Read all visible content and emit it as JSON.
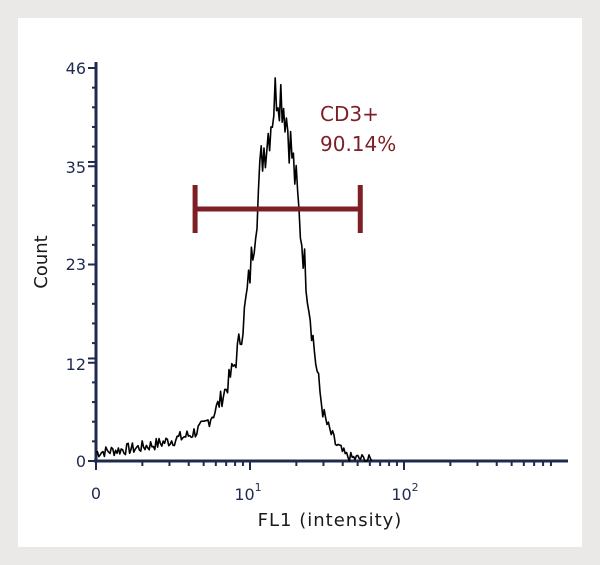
{
  "chart_data": {
    "type": "line",
    "xlabel": "FL1 (intensity)",
    "ylabel": "Count",
    "x_scale": "log",
    "y_ticks": [
      0,
      12,
      23,
      35,
      46
    ],
    "x_ticks": [
      {
        "base": "0",
        "exp": ""
      },
      {
        "base": "10",
        "exp": "1"
      },
      {
        "base": "10",
        "exp": "2"
      }
    ],
    "ylim": [
      0,
      46
    ],
    "series": [
      {
        "x": [
          1.0,
          1.8,
          2.5,
          3.2,
          4.0,
          5.0,
          6.0,
          7.0,
          8.0,
          9.0,
          10.0,
          11.0,
          12.0,
          13.0,
          14.0,
          15.0,
          16.0,
          17.0,
          18.0,
          19.0,
          20.0,
          21.0,
          22.0,
          23.0,
          24.0,
          25.0,
          26.0,
          27.0,
          28.0,
          29.0,
          30.0,
          32.0,
          34.0,
          36.0,
          38.0,
          40.0,
          42.0,
          45.0,
          48.0,
          52.0,
          55.0,
          60.0,
          63.0
        ],
        "y": [
          1,
          1.5,
          2,
          2.5,
          3,
          4,
          6,
          8.5,
          11.5,
          16,
          22,
          29,
          36,
          38,
          41,
          44,
          43,
          41,
          38,
          35,
          32,
          28,
          25,
          22,
          19,
          16,
          13.5,
          11,
          9,
          7,
          5.5,
          4,
          3,
          2,
          1.5,
          1,
          0.6,
          0.4,
          0.3,
          0.3,
          0.2,
          0.1,
          0.1
        ]
      }
    ],
    "gate": {
      "label": "CD3+",
      "percent": "90.14%",
      "x_start": 4.4,
      "x_end": 52,
      "y": 29.5,
      "color": "#7d1f24"
    }
  }
}
